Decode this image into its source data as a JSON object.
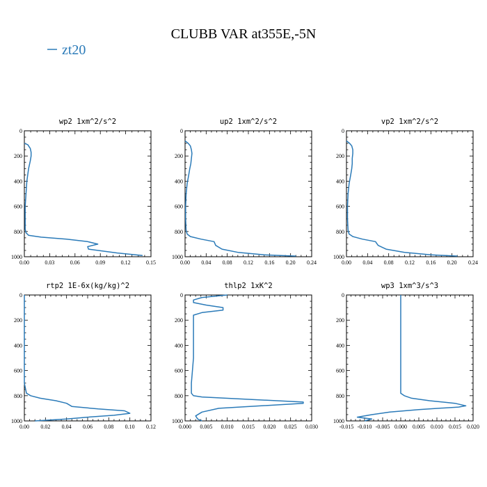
{
  "figure": {
    "title": "CLUBB VAR at355E,-5N",
    "legend": [
      "zt20"
    ],
    "series_color": "#2a7ab8"
  },
  "chart_data": [
    {
      "type": "line",
      "title": "wp2  1xm^2/s^2",
      "series": [
        {
          "name": "zt20",
          "x": [
            0.0,
            0.004,
            0.007,
            0.008,
            0.008,
            0.007,
            0.005,
            0.003,
            0.002,
            0.001,
            0.001,
            0.001,
            0.002,
            0.005,
            0.02,
            0.05,
            0.075,
            0.087,
            0.075,
            0.076,
            0.11,
            0.14
          ],
          "y": [
            100,
            110,
            140,
            170,
            200,
            240,
            300,
            400,
            500,
            600,
            700,
            780,
            810,
            830,
            845,
            860,
            880,
            900,
            920,
            940,
            970,
            990
          ]
        }
      ],
      "xlim": [
        0,
        0.15
      ],
      "xticks": [
        0.0,
        0.03,
        0.06,
        0.09,
        0.12,
        0.15
      ],
      "xtick_labels": [
        "0.00",
        "0.03",
        "0.06",
        "0.09",
        "0.12",
        "0.15"
      ],
      "ylim": [
        1000,
        0
      ],
      "yticks": [
        0,
        200,
        400,
        600,
        800,
        1000
      ],
      "ytick_labels": [
        "0",
        "200",
        "400",
        "600",
        "800",
        "1000"
      ]
    },
    {
      "type": "line",
      "title": "up2  1xm^2/s^2",
      "series": [
        {
          "name": "zt20",
          "x": [
            0.0,
            0.006,
            0.01,
            0.012,
            0.013,
            0.012,
            0.011,
            0.009,
            0.007,
            0.004,
            0.002,
            0.001,
            0.001,
            0.002,
            0.004,
            0.01,
            0.03,
            0.055,
            0.058,
            0.07,
            0.1,
            0.15,
            0.21
          ],
          "y": [
            80,
            100,
            120,
            150,
            180,
            220,
            260,
            300,
            350,
            420,
            500,
            600,
            700,
            790,
            820,
            840,
            860,
            880,
            910,
            940,
            965,
            985,
            995
          ]
        }
      ],
      "xlim": [
        0,
        0.24
      ],
      "xticks": [
        0.0,
        0.04,
        0.08,
        0.12,
        0.16,
        0.2,
        0.24
      ],
      "xtick_labels": [
        "0.00",
        "0.04",
        "0.08",
        "0.12",
        "0.16",
        "0.20",
        "0.24"
      ],
      "ylim": [
        1000,
        0
      ],
      "yticks": [
        0,
        200,
        400,
        600,
        800,
        1000
      ],
      "ytick_labels": [
        "0",
        "200",
        "400",
        "600",
        "800",
        "1000"
      ]
    },
    {
      "type": "line",
      "title": "vp2  1xm^2/s^2",
      "series": [
        {
          "name": "zt20",
          "x": [
            0.0,
            0.006,
            0.01,
            0.012,
            0.012,
            0.011,
            0.011,
            0.01,
            0.008,
            0.005,
            0.003,
            0.002,
            0.002,
            0.003,
            0.005,
            0.012,
            0.03,
            0.055,
            0.06,
            0.075,
            0.11,
            0.16,
            0.21
          ],
          "y": [
            80,
            100,
            120,
            150,
            180,
            220,
            260,
            300,
            350,
            420,
            500,
            600,
            700,
            790,
            820,
            840,
            860,
            880,
            910,
            940,
            965,
            985,
            995
          ]
        }
      ],
      "xlim": [
        0,
        0.24
      ],
      "xticks": [
        0.0,
        0.04,
        0.08,
        0.12,
        0.16,
        0.2,
        0.24
      ],
      "xtick_labels": [
        "0.00",
        "0.04",
        "0.08",
        "0.12",
        "0.16",
        "0.20",
        "0.24"
      ],
      "ylim": [
        1000,
        0
      ],
      "yticks": [
        0,
        200,
        400,
        600,
        800,
        1000
      ],
      "ytick_labels": [
        "0",
        "200",
        "400",
        "600",
        "800",
        "1000"
      ]
    },
    {
      "type": "line",
      "title": "rtp2  1E-6x(kg/kg)^2",
      "series": [
        {
          "name": "zt20",
          "x": [
            0.0,
            0.0,
            0.0,
            0.002,
            0.006,
            0.015,
            0.03,
            0.04,
            0.045,
            0.07,
            0.095,
            0.1,
            0.085,
            0.06,
            0.04,
            0.02,
            0.01
          ],
          "y": [
            0,
            500,
            700,
            780,
            800,
            820,
            840,
            860,
            885,
            905,
            920,
            940,
            955,
            970,
            985,
            995,
            1000
          ]
        }
      ],
      "xlim": [
        0,
        0.12
      ],
      "xticks": [
        0.0,
        0.02,
        0.04,
        0.06,
        0.08,
        0.1,
        0.12
      ],
      "xtick_labels": [
        "0.00",
        "0.02",
        "0.04",
        "0.06",
        "0.08",
        "0.10",
        "0.12"
      ],
      "ylim": [
        1000,
        0
      ],
      "yticks": [
        0,
        200,
        400,
        600,
        800,
        1000
      ],
      "ytick_labels": [
        "0",
        "200",
        "400",
        "600",
        "800",
        "1000"
      ]
    },
    {
      "type": "line",
      "title": "thlp2  1xK^2",
      "series": [
        {
          "name": "zt20",
          "x": [
            0.01,
            0.004,
            0.002,
            0.002,
            0.005,
            0.009,
            0.009,
            0.004,
            0.002,
            0.002,
            0.002,
            0.002,
            0.0015,
            0.0015,
            0.002,
            0.004,
            0.028,
            0.028,
            0.008,
            0.004,
            0.0025,
            0.003,
            0.004
          ],
          "y": [
            0,
            20,
            40,
            60,
            80,
            100,
            120,
            140,
            160,
            200,
            300,
            500,
            700,
            780,
            800,
            810,
            850,
            860,
            900,
            930,
            960,
            985,
            1000
          ]
        }
      ],
      "xlim": [
        0,
        0.03
      ],
      "xticks": [
        0.0,
        0.005,
        0.01,
        0.015,
        0.02,
        0.025,
        0.03
      ],
      "xtick_labels": [
        "0.000",
        "0.005",
        "0.010",
        "0.015",
        "0.020",
        "0.025",
        "0.030"
      ],
      "ylim": [
        1000,
        0
      ],
      "yticks": [
        0,
        200,
        400,
        600,
        800,
        1000
      ],
      "ytick_labels": [
        "0",
        "200",
        "400",
        "600",
        "800",
        "1000"
      ]
    },
    {
      "type": "line",
      "title": "wp3  1xm^3/s^3",
      "series": [
        {
          "name": "zt20",
          "x": [
            0.0,
            0.0,
            0.0,
            0.0,
            0.0,
            0.001,
            0.003,
            0.008,
            0.015,
            0.018,
            0.016,
            0.005,
            -0.003,
            -0.008,
            -0.012,
            -0.008,
            -0.01
          ],
          "y": [
            0,
            200,
            500,
            700,
            780,
            800,
            820,
            840,
            860,
            880,
            890,
            910,
            930,
            950,
            970,
            985,
            1000
          ]
        }
      ],
      "xlim": [
        -0.015,
        0.02
      ],
      "xticks": [
        -0.015,
        -0.01,
        -0.005,
        0.0,
        0.005,
        0.01,
        0.015,
        0.02
      ],
      "xtick_labels": [
        "-0.015",
        "-0.010",
        "-0.005",
        "0.000",
        "0.005",
        "0.010",
        "0.015",
        "0.020"
      ],
      "ylim": [
        1000,
        0
      ],
      "yticks": [
        0,
        200,
        400,
        600,
        800,
        1000
      ],
      "ytick_labels": [
        "0",
        "200",
        "400",
        "600",
        "800",
        "1000"
      ]
    }
  ]
}
